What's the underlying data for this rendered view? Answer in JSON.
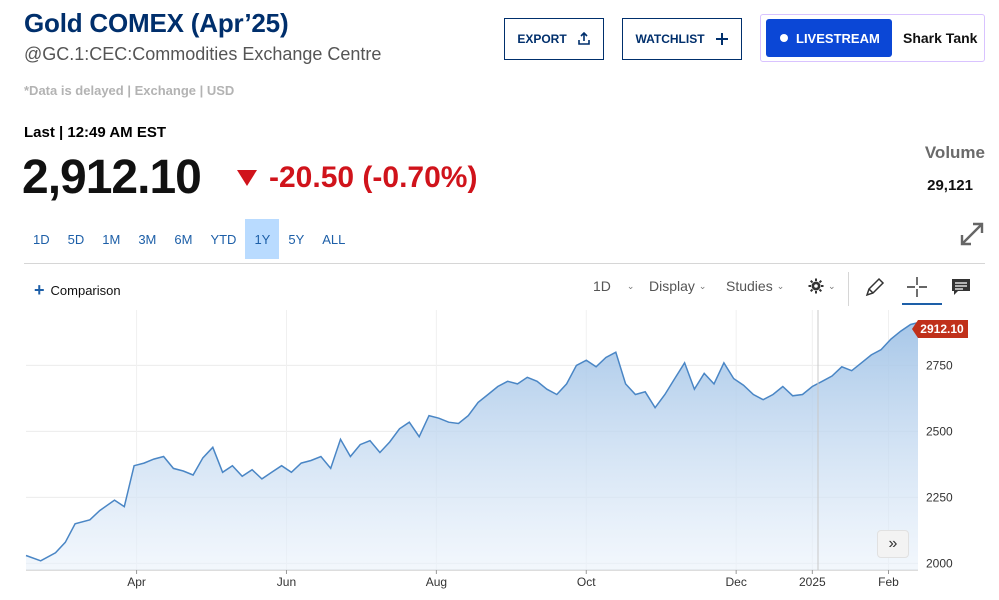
{
  "header": {
    "title": "Gold COMEX (Apr’25)",
    "subtitle": "@GC.1:CEC:Commodities Exchange Centre",
    "delayed": "*Data is delayed | Exchange | USD"
  },
  "buttons": {
    "export": "EXPORT",
    "watchlist": "WATCHLIST",
    "livestream": "LIVESTREAM",
    "show": "Shark Tank"
  },
  "quote": {
    "last_label": "Last | 12:49 AM EST",
    "price": "2,912.10",
    "change": "-20.50 (-0.70%)",
    "volume_label": "Volume",
    "volume": "29,121"
  },
  "ranges": [
    "1D",
    "5D",
    "1M",
    "3M",
    "6M",
    "YTD",
    "1Y",
    "5Y",
    "ALL"
  ],
  "active_range": "1Y",
  "toolbar": {
    "comparison": "Comparison",
    "interval": "1D",
    "display": "Display",
    "studies": "Studies",
    "forward": "»"
  },
  "colors": {
    "brand": "#002f6c",
    "down": "#d0131b",
    "line": "#4a86c5",
    "active_range": "#b9dbff",
    "live": "#0b47d6"
  },
  "icons": [
    "upload-icon",
    "plus-icon",
    "settings-icon",
    "pencil-icon",
    "crosshair-icon",
    "comment-icon",
    "expand-icon",
    "fast-forward-icon"
  ],
  "chart_data": {
    "type": "area",
    "y_ticks": [
      "2000",
      "2250",
      "2500",
      "2750"
    ],
    "ylim": [
      1975,
      2960
    ],
    "x_ticks": [
      {
        "label": "Apr",
        "x": 45
      },
      {
        "label": "Jun",
        "x": 106
      },
      {
        "label": "Aug",
        "x": 167
      },
      {
        "label": "Oct",
        "x": 228
      },
      {
        "label": "Dec",
        "x": 289
      },
      {
        "label": "2025",
        "x": 320
      },
      {
        "label": "Feb",
        "x": 351
      }
    ],
    "last_price_label": "2912.10",
    "x": [
      0,
      6,
      12,
      16,
      20,
      26,
      30,
      36,
      40,
      44,
      48,
      52,
      56,
      60,
      64,
      68,
      72,
      76,
      80,
      84,
      88,
      92,
      96,
      100,
      104,
      108,
      112,
      116,
      120,
      124,
      128,
      132,
      136,
      140,
      144,
      148,
      152,
      156,
      160,
      164,
      168,
      172,
      176,
      180,
      184,
      188,
      192,
      196,
      200,
      204,
      208,
      212,
      216,
      220,
      224,
      228,
      232,
      236,
      240,
      244,
      248,
      252,
      256,
      260,
      264,
      268,
      272,
      276,
      280,
      284,
      288,
      292,
      296,
      300,
      304,
      308,
      312,
      316,
      320,
      324,
      328,
      332,
      336,
      340,
      344,
      348,
      352,
      356,
      360,
      363
    ],
    "values": [
      2030,
      2010,
      2040,
      2080,
      2150,
      2165,
      2200,
      2240,
      2215,
      2370,
      2380,
      2395,
      2405,
      2360,
      2350,
      2335,
      2400,
      2440,
      2345,
      2370,
      2330,
      2355,
      2320,
      2345,
      2370,
      2345,
      2380,
      2390,
      2405,
      2360,
      2470,
      2405,
      2450,
      2465,
      2420,
      2460,
      2510,
      2535,
      2480,
      2560,
      2550,
      2535,
      2530,
      2560,
      2610,
      2640,
      2670,
      2690,
      2680,
      2705,
      2690,
      2660,
      2640,
      2680,
      2750,
      2770,
      2745,
      2780,
      2800,
      2680,
      2640,
      2650,
      2590,
      2640,
      2700,
      2760,
      2660,
      2720,
      2680,
      2760,
      2700,
      2675,
      2640,
      2620,
      2640,
      2670,
      2635,
      2640,
      2670,
      2690,
      2710,
      2745,
      2730,
      2760,
      2790,
      2810,
      2850,
      2880,
      2905,
      2912.1
    ],
    "xlabel": "",
    "ylabel": ""
  }
}
